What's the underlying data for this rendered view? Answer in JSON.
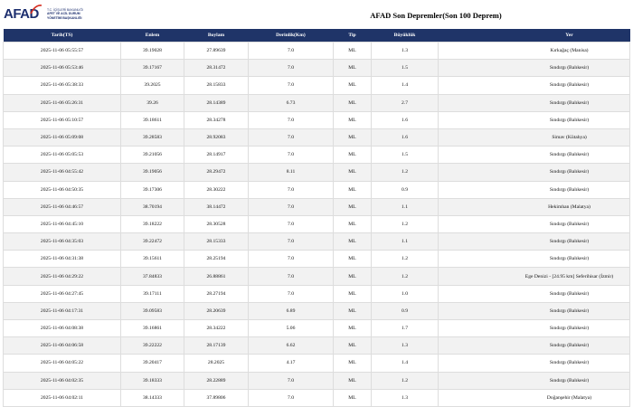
{
  "header": {
    "logo": "AFAD",
    "ministry": [
      "T.C. İÇİŞLERİ BAKANLIĞI",
      "AFET VE ACİL DURUM",
      "YÖNETİMİ BAŞKANLIĞI"
    ],
    "title": "AFAD Son Depremler(Son 100 Deprem)"
  },
  "table": {
    "columns": [
      "Tarih(TS)",
      "Enlem",
      "Boylam",
      "Derinlik(Km)",
      "Tip",
      "Büyüklük",
      "Yer"
    ],
    "rows": [
      [
        "2025-11-06 05:55:57",
        "39.19028",
        "27.89639",
        "7.0",
        "ML",
        "1.3",
        "Kırkağaç (Manisa)"
      ],
      [
        "2025-11-06 05:53:46",
        "39.17167",
        "28.31472",
        "7.0",
        "ML",
        "1.5",
        "Sındırgı (Balıkesir)"
      ],
      [
        "2025-11-06 05:38:33",
        "39.2025",
        "28.15833",
        "7.0",
        "ML",
        "1.4",
        "Sındırgı (Balıkesir)"
      ],
      [
        "2025-11-06 05:26:31",
        "39.26",
        "28.14389",
        "6.73",
        "ML",
        "2.7",
        "Sındırgı (Balıkesir)"
      ],
      [
        "2025-11-06 05:10:57",
        "39.18611",
        "28.34278",
        "7.0",
        "ML",
        "1.6",
        "Sındırgı (Balıkesir)"
      ],
      [
        "2025-11-06 05:09:08",
        "39.28583",
        "28.92083",
        "7.0",
        "ML",
        "1.6",
        "Simav (Kütahya)"
      ],
      [
        "2025-11-06 05:05:53",
        "39.21056",
        "28.14917",
        "7.0",
        "ML",
        "1.5",
        "Sındırgı (Balıkesir)"
      ],
      [
        "2025-11-06 04:55:42",
        "39.19056",
        "28.29472",
        "8.11",
        "ML",
        "1.2",
        "Sındırgı (Balıkesir)"
      ],
      [
        "2025-11-06 04:50:35",
        "39.17306",
        "28.30222",
        "7.0",
        "ML",
        "0.9",
        "Sındırgı (Balıkesir)"
      ],
      [
        "2025-11-06 04:46:57",
        "38.70194",
        "38.14472",
        "7.0",
        "ML",
        "1.1",
        "Hekimhan (Malatya)"
      ],
      [
        "2025-11-06 04:45:10",
        "39.18222",
        "28.30528",
        "7.0",
        "ML",
        "1.2",
        "Sındırgı (Balıkesir)"
      ],
      [
        "2025-11-06 04:35:03",
        "39.22472",
        "28.15333",
        "7.0",
        "ML",
        "1.1",
        "Sındırgı (Balıkesir)"
      ],
      [
        "2025-11-06 04:31:38",
        "39.15611",
        "28.25194",
        "7.0",
        "ML",
        "1.2",
        "Sındırgı (Balıkesir)"
      ],
      [
        "2025-11-06 04:29:22",
        "37.84833",
        "26.88861",
        "7.0",
        "ML",
        "1.2",
        "Ege Denizi - [24.95 km] Seferihisar (İzmir)"
      ],
      [
        "2025-11-06 04:27:45",
        "39.17111",
        "28.27194",
        "7.0",
        "ML",
        "1.0",
        "Sındırgı (Balıkesir)"
      ],
      [
        "2025-11-06 04:17:31",
        "39.09583",
        "28.20639",
        "6.89",
        "ML",
        "0.9",
        "Sındırgı (Balıkesir)"
      ],
      [
        "2025-11-06 04:08:38",
        "39.16861",
        "28.34222",
        "5.06",
        "ML",
        "1.7",
        "Sındırgı (Balıkesir)"
      ],
      [
        "2025-11-06 04:06:58",
        "39.22222",
        "28.17139",
        "6.62",
        "ML",
        "1.3",
        "Sındırgı (Balıkesir)"
      ],
      [
        "2025-11-06 04:05:22",
        "39.20417",
        "28.2025",
        "4.17",
        "ML",
        "1.4",
        "Sındırgı (Balıkesir)"
      ],
      [
        "2025-11-06 04:02:35",
        "39.18333",
        "28.22889",
        "7.0",
        "ML",
        "1.2",
        "Sındırgı (Balıkesir)"
      ],
      [
        "2025-11-06 04:02:11",
        "38.14333",
        "37.89806",
        "7.0",
        "ML",
        "1.3",
        "Doğanşehir (Malatya)"
      ]
    ]
  }
}
